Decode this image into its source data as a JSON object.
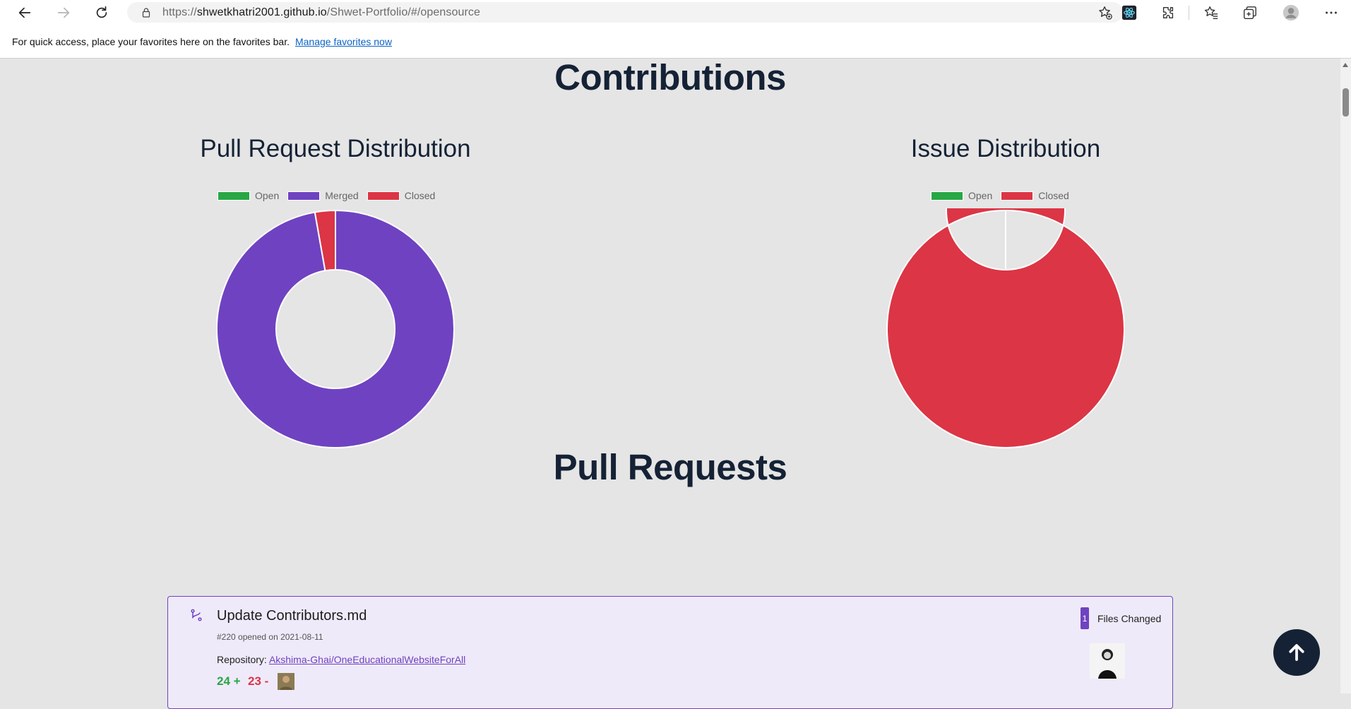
{
  "browser": {
    "url_scheme": "https://",
    "url_host": "shwetkhatri2001.github.io",
    "url_path": "/Shwet-Portfolio/#/opensource",
    "favorites_message": "For quick access, place your favorites here on the favorites bar.",
    "favorites_link": "Manage favorites now",
    "icons": [
      "back-arrow-icon",
      "forward-arrow-icon",
      "refresh-icon",
      "lock-icon",
      "add-favorite-icon",
      "react-devtools-icon",
      "extensions-icon",
      "favorites-icon",
      "collections-icon",
      "profile-icon",
      "more-icon"
    ]
  },
  "page": {
    "contributions_heading": "Contributions",
    "pull_requests_heading": "Pull Requests"
  },
  "chart_data": [
    {
      "type": "pie",
      "donut": true,
      "title": "Pull Request Distribution",
      "legend_position": "top",
      "categories": [
        "Open",
        "Merged",
        "Closed"
      ],
      "values": [
        0,
        35,
        1
      ],
      "colors": [
        "#28a745",
        "#6f42c1",
        "#dc3545"
      ]
    },
    {
      "type": "pie",
      "donut": true,
      "title": "Issue Distribution",
      "legend_position": "top",
      "categories": [
        "Open",
        "Closed"
      ],
      "values": [
        0,
        1
      ],
      "colors": [
        "#28a745",
        "#dc3545"
      ]
    }
  ],
  "pr_card": {
    "title": "Update Contributors.md",
    "meta": "#220 opened on 2021-08-11",
    "repo_label": "Repository: ",
    "repo_name": "Akshima-Ghai/OneEducationalWebsiteForAll",
    "additions": "24 +",
    "deletions": "23 -",
    "files_changed_count": "1",
    "files_changed_label": "Files Changed"
  }
}
